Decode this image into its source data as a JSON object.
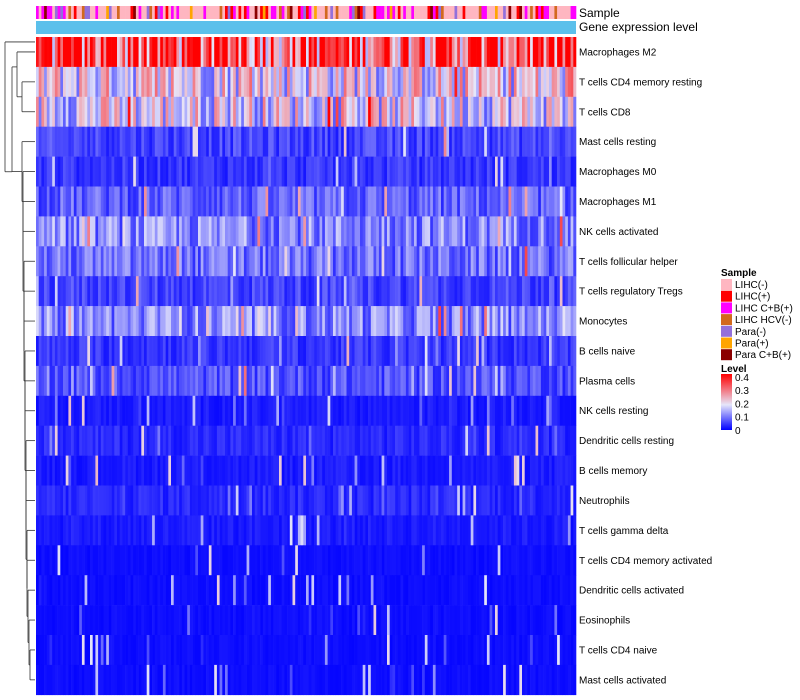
{
  "chart_data": {
    "type": "heatmap",
    "annotation_labels": {
      "sample": "Sample",
      "expression": "Gene expression level"
    },
    "rows": [
      {
        "name": "Macrophages M2",
        "level": 0.33
      },
      {
        "name": "T cells CD4 memory resting",
        "level": 0.18
      },
      {
        "name": "T cells CD8",
        "level": 0.17
      },
      {
        "name": "Mast cells resting",
        "level": 0.05
      },
      {
        "name": "Macrophages M0",
        "level": 0.04
      },
      {
        "name": "Macrophages M1",
        "level": 0.07
      },
      {
        "name": "NK cells activated",
        "level": 0.1
      },
      {
        "name": "T cells follicular helper",
        "level": 0.08
      },
      {
        "name": "T cells regulatory  Tregs",
        "level": 0.05
      },
      {
        "name": "Monocytes",
        "level": 0.1
      },
      {
        "name": "B cells naive",
        "level": 0.04
      },
      {
        "name": "Plasma cells",
        "level": 0.06
      },
      {
        "name": "NK cells resting",
        "level": 0.02
      },
      {
        "name": "Dendritic cells resting",
        "level": 0.03
      },
      {
        "name": "B cells memory",
        "level": 0.02
      },
      {
        "name": "Neutrophils",
        "level": 0.03
      },
      {
        "name": "T cells gamma delta",
        "level": 0.02
      },
      {
        "name": "T cells CD4 memory activated",
        "level": 0.01
      },
      {
        "name": "Dendritic cells activated",
        "level": 0.01
      },
      {
        "name": "Eosinophils",
        "level": 0.01
      },
      {
        "name": "T cells CD4 naive",
        "level": 0.01
      },
      {
        "name": "Mast cells activated",
        "level": 0.01
      }
    ],
    "legend_sample": {
      "title": "Sample",
      "entries": [
        {
          "label": "LIHC(-)",
          "color": "#FFB6C1"
        },
        {
          "label": "LIHC(+)",
          "color": "#FF0000"
        },
        {
          "label": "LIHC C+B(+)",
          "color": "#FF00FF"
        },
        {
          "label": "LIHC HCV(-)",
          "color": "#D2691E"
        },
        {
          "label": "Para(-)",
          "color": "#9370DB"
        },
        {
          "label": "Para(+)",
          "color": "#FFA500"
        },
        {
          "label": "Para C+B(+)",
          "color": "#8B0000"
        }
      ]
    },
    "legend_level": {
      "title": "Level",
      "ticks": [
        "0.4",
        "0.3",
        "0.2",
        "0.1",
        "0"
      ],
      "range": [
        0,
        0.4
      ],
      "colors": [
        "#0000FF",
        "#E6E6FA",
        "#FF0000"
      ]
    },
    "expression_color": "#5BC0EB"
  }
}
